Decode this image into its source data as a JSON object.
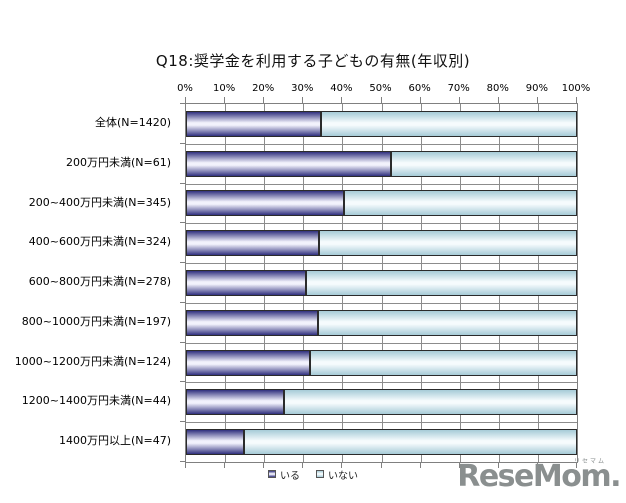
{
  "title": "Q18:奨学金を利用する子どもの有無(年収別)",
  "chart_data": {
    "type": "bar",
    "orientation": "horizontal",
    "stacked": true,
    "unit": "%",
    "categories": [
      "全体(N=1420)",
      "200万円未満(N=61)",
      "200~400万円未満(N=345)",
      "400~600万円未満(N=324)",
      "600~800万円未満(N=278)",
      "800~1000万円未満(N=197)",
      "1000~1200万円未満(N=124)",
      "1200~1400万円未満(N=44)",
      "1400万円以上(N=47)"
    ],
    "series": [
      {
        "name": "いる",
        "values": [
          34.6,
          52.5,
          40.3,
          33.9,
          30.8,
          33.8,
          31.8,
          25.1,
          14.9
        ],
        "edge_color": "#30307e",
        "mid_color": "#f2f2fc"
      },
      {
        "name": "いない",
        "values": [
          65.4,
          47.5,
          59.7,
          66.1,
          69.2,
          66.2,
          68.2,
          74.9,
          85.1
        ],
        "edge_color": "#a6cbd7",
        "mid_color": "#f6fbfd"
      }
    ],
    "x_ticks": [
      "0%",
      "10%",
      "20%",
      "30%",
      "40%",
      "50%",
      "60%",
      "70%",
      "80%",
      "90%",
      "100%"
    ],
    "xlim": [
      0,
      100
    ],
    "grid": true,
    "gridline_color": "#8c8c8c",
    "legend_position": "bottom"
  },
  "legend": {
    "items": [
      "いる",
      "いない"
    ]
  },
  "watermark": {
    "text": "ReseMom.",
    "ruby": "リセマム",
    "color": "#8a8f8f"
  }
}
